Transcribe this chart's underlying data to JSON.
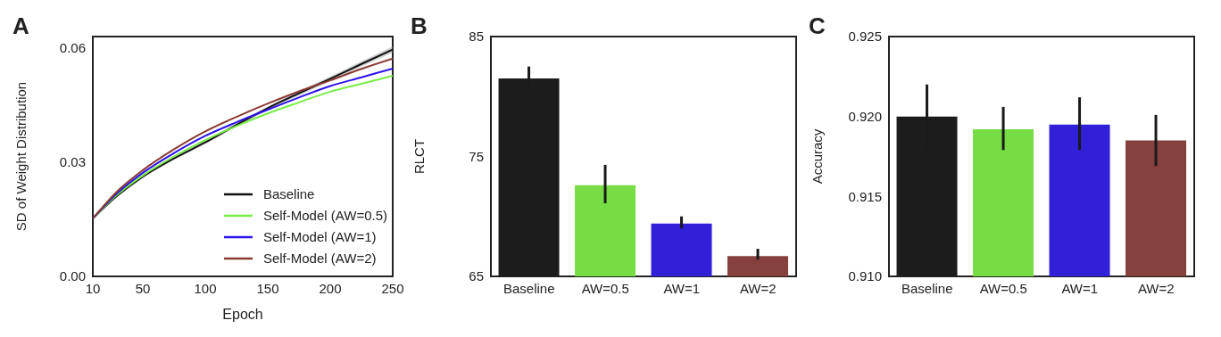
{
  "chart_data": [
    {
      "type": "line",
      "title": "A",
      "xlabel": "Epoch",
      "ylabel": "SD of Weight Distribution",
      "x": [
        10,
        30,
        50,
        75,
        100,
        125,
        150,
        175,
        200,
        225,
        250
      ],
      "series": [
        {
          "name": "Baseline",
          "color": "#111111",
          "values": [
            0.0152,
            0.0213,
            0.0262,
            0.031,
            0.0352,
            0.0398,
            0.0442,
            0.0481,
            0.0519,
            0.0558,
            0.0596
          ],
          "lower": [
            0.0151,
            0.0211,
            0.0259,
            0.0307,
            0.0348,
            0.0393,
            0.0437,
            0.0475,
            0.0513,
            0.0551,
            0.0588
          ],
          "upper": [
            0.0153,
            0.0215,
            0.0265,
            0.0313,
            0.0356,
            0.0403,
            0.0447,
            0.0487,
            0.0525,
            0.0565,
            0.0604
          ]
        },
        {
          "name": "Self-Model (AW=0.5)",
          "color": "#77ee44",
          "values": [
            0.0152,
            0.0216,
            0.0265,
            0.0315,
            0.0358,
            0.0395,
            0.0428,
            0.0457,
            0.0485,
            0.0506,
            0.0527
          ]
        },
        {
          "name": "Self-Model (AW=1)",
          "color": "#2a12ee",
          "values": [
            0.0152,
            0.022,
            0.0272,
            0.0324,
            0.0369,
            0.0405,
            0.0438,
            0.047,
            0.05,
            0.0523,
            0.0546
          ]
        },
        {
          "name": "Self-Model (AW=2)",
          "color": "#8b3a32",
          "values": [
            0.0152,
            0.0225,
            0.0279,
            0.0334,
            0.0381,
            0.0419,
            0.0454,
            0.0486,
            0.0515,
            0.0545,
            0.0572
          ]
        }
      ],
      "xlim": [
        10,
        250
      ],
      "xticks": [
        10,
        50,
        100,
        150,
        200,
        250
      ],
      "ylim": [
        0,
        0.063
      ],
      "yticks": [
        {
          "value": 0,
          "label": "0.00"
        },
        {
          "value": 0.03,
          "label": "0.03"
        },
        {
          "value": 0.06,
          "label": "0.06"
        }
      ],
      "legend": "bottom right",
      "line_style": "solid"
    },
    {
      "type": "bar",
      "title": "B",
      "ylabel": "RLCT",
      "categories": [
        "Baseline",
        "AW=0.5",
        "AW=1",
        "AW=2"
      ],
      "values": [
        81.5,
        72.6,
        69.4,
        66.7
      ],
      "colors": [
        "#1c1c1c",
        "#77dd44",
        "#3120d8",
        "#86403d"
      ],
      "errors": [
        1.0,
        [
          71.1,
          74.3
        ],
        [
          69.0,
          70.0
        ],
        [
          66.4,
          67.3
        ]
      ],
      "ylim": [
        65,
        85
      ],
      "yticks": [
        65,
        75,
        85
      ]
    },
    {
      "type": "bar",
      "title": "C",
      "ylabel": "Accuracy",
      "categories": [
        "Baseline",
        "AW=0.5",
        "AW=1",
        "AW=2"
      ],
      "values": [
        0.92,
        0.9192,
        0.9195,
        0.9185
      ],
      "colors": [
        "#1c1c1c",
        "#77dd44",
        "#3120d8",
        "#86403d"
      ],
      "errors": [
        0.002,
        [
          0.9179,
          0.9206
        ],
        [
          0.9179,
          0.9212
        ],
        [
          0.9169,
          0.9201
        ]
      ],
      "ylim": [
        0.91,
        0.925
      ],
      "yticks": [
        {
          "value": 0.91,
          "label": "0.910"
        },
        {
          "value": 0.915,
          "label": "0.915"
        },
        {
          "value": 0.92,
          "label": "0.920"
        },
        {
          "value": 0.925,
          "label": "0.925"
        }
      ]
    }
  ]
}
